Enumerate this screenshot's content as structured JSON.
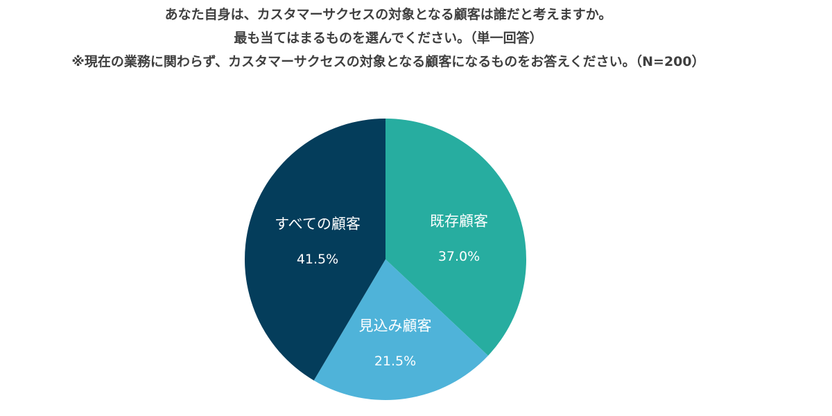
{
  "chart_data": {
    "type": "pie",
    "title_lines": [
      "あなた自身は、カスタマーサクセスの対象となる顧客は誰だと考えますか。",
      "最も当てはまるものを選んでください。（単一回答）",
      "※現在の業務に関わらず、カスタマーサクセスの対象となる顧客になるものをお答えください。（N=200）"
    ],
    "slices": [
      {
        "label": "既存顧客",
        "value": 37.0,
        "display": "37.0%",
        "color": "#27ada0"
      },
      {
        "label": "見込み顧客",
        "value": 21.5,
        "display": "21.5%",
        "color": "#4fb3d9"
      },
      {
        "label": "すべての顧客",
        "value": 41.5,
        "display": "41.5%",
        "color": "#043d5b"
      }
    ],
    "start_angle": "12 o'clock",
    "direction": "clockwise",
    "legend": "none"
  }
}
